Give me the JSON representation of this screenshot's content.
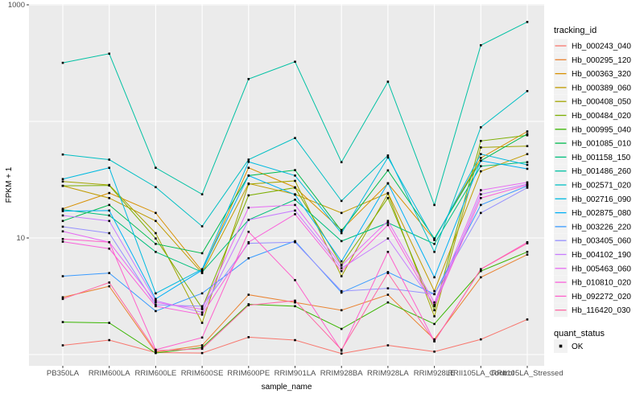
{
  "chart_data": {
    "type": "line",
    "title": "",
    "xlabel": "sample_name",
    "ylabel": "FPKM + 1",
    "y_scale": "log10",
    "ylim": [
      0.8,
      1000
    ],
    "grid": "on",
    "legend_position": "right",
    "y_ticks": [
      {
        "label": "1000",
        "value": 1000
      },
      {
        "label": "10",
        "value": 10
      }
    ],
    "y_gridlines": [
      1,
      10,
      100,
      1000
    ],
    "x_categories": [
      "PB350LA",
      "RRIM600LA",
      "RRIM600LE",
      "RRIM600SE",
      "RRIM600PE",
      "RRIM901LA",
      "RRIM928BA",
      "RRIM928LA",
      "RRIM928LE",
      "RRII105LA_Control",
      "RRII105LA_Stressed"
    ],
    "legend_title": "tracking_id",
    "point_marker": {
      "shape": "square",
      "color": "#000000"
    },
    "quant_legend": {
      "title": "quant_status",
      "entries": [
        "OK"
      ]
    },
    "series": [
      {
        "name": "Hb_000243_040",
        "color": "#F8766D",
        "values": [
          1.2,
          1.33,
          1.04,
          1.03,
          1.41,
          1.33,
          1.02,
          1.2,
          1.06,
          1.35,
          2.0
        ]
      },
      {
        "name": "Hb_000295_120",
        "color": "#EA8331",
        "values": [
          3.1,
          3.85,
          1.05,
          1.2,
          3.26,
          2.8,
          2.4,
          3.26,
          1.35,
          4.6,
          7.2
        ]
      },
      {
        "name": "Hb_000363_320",
        "color": "#D89000",
        "values": [
          17.8,
          24.3,
          16.4,
          5.2,
          40,
          27.2,
          11.7,
          29.3,
          9.7,
          48.6,
          82
        ]
      },
      {
        "name": "Hb_000389_060",
        "color": "#C09B00",
        "values": [
          28,
          22,
          14,
          5.0,
          29.3,
          23.7,
          16.4,
          24.3,
          3.5,
          37.3,
          52.4
        ]
      },
      {
        "name": "Hb_000408_050",
        "color": "#A3A500",
        "values": [
          30.5,
          28.5,
          11,
          1.87,
          29,
          30.9,
          4.7,
          24,
          2.13,
          59.8,
          61.4
        ]
      },
      {
        "name": "Hb_000484_020",
        "color": "#7CAE00",
        "values": [
          28,
          28.2,
          9.9,
          2.5,
          23.2,
          27,
          5.9,
          22,
          2.4,
          68,
          76
        ]
      },
      {
        "name": "Hb_000995_040",
        "color": "#39B600",
        "values": [
          1.9,
          1.87,
          1.03,
          1.15,
          2.7,
          2.6,
          1.66,
          2.8,
          1.83,
          5.2,
          7.6
        ]
      },
      {
        "name": "Hb_001085_010",
        "color": "#00BB4E",
        "values": [
          14,
          19.2,
          8.9,
          7.4,
          34.3,
          38.2,
          11.5,
          38,
          9.9,
          46,
          78
        ]
      },
      {
        "name": "Hb_001158_150",
        "color": "#00BF7D",
        "values": [
          17.5,
          15.6,
          7.6,
          5.1,
          14.3,
          21.3,
          9.4,
          13.5,
          8.9,
          41.3,
          44.7
        ]
      },
      {
        "name": "Hb_001486_260",
        "color": "#00C1A3",
        "values": [
          318,
          381,
          40,
          23.7,
          231,
          325,
          44.7,
          219,
          19.2,
          450,
          713
        ]
      },
      {
        "name": "Hb_002571_020",
        "color": "#00BFC4",
        "values": [
          52,
          47,
          27.3,
          12.6,
          47,
          72,
          20.8,
          51,
          7.6,
          89,
          182
        ]
      },
      {
        "name": "Hb_002716_090",
        "color": "#00BAE0",
        "values": [
          32,
          40,
          3.35,
          5.4,
          45,
          34.3,
          11.0,
          49,
          9.6,
          52.4,
          42.4
        ]
      },
      {
        "name": "Hb_002875_080",
        "color": "#00B0F6",
        "values": [
          17,
          17.2,
          3.0,
          5.3,
          34.3,
          23.5,
          6.3,
          29.5,
          4.6,
          46,
          39.2
        ]
      },
      {
        "name": "Hb_003226_220",
        "color": "#3A9BFF",
        "values": [
          4.7,
          5.0,
          2.36,
          3.35,
          6.7,
          9.4,
          3.4,
          5.1,
          3.3,
          19.2,
          28
        ]
      },
      {
        "name": "Hb_003405_060",
        "color": "#9590FF",
        "values": [
          12.5,
          11,
          2.67,
          2.6,
          9.0,
          9.2,
          3.5,
          3.7,
          3.3,
          16.4,
          27
        ]
      },
      {
        "name": "Hb_004102_190",
        "color": "#C77CFF",
        "values": [
          15.6,
          14,
          2.9,
          2.3,
          14.3,
          17.2,
          5.5,
          9.9,
          2.67,
          23.7,
          29
        ]
      },
      {
        "name": "Hb_005463_060",
        "color": "#E76BF3",
        "values": [
          11.4,
          9.2,
          2.8,
          2.45,
          18.2,
          19.2,
          5.8,
          14,
          2.8,
          25.7,
          30
        ]
      },
      {
        "name": "Hb_010810_020",
        "color": "#FA62DB",
        "values": [
          9.3,
          8.1,
          2.6,
          2.2,
          9.2,
          16,
          5.2,
          12.9,
          2.6,
          22,
          28.5
        ]
      },
      {
        "name": "Hb_092272_020",
        "color": "#FF61CC",
        "values": [
          9.8,
          9.2,
          1.1,
          1.4,
          11.3,
          4.35,
          1.08,
          7.6,
          1.3,
          5.4,
          9.2
        ]
      },
      {
        "name": "Hb_116420_030",
        "color": "#FF67A4",
        "values": [
          3.0,
          4.15,
          1.08,
          1.12,
          2.65,
          2.9,
          1.1,
          5.0,
          1.3,
          5.4,
          9.0
        ]
      }
    ]
  },
  "colors": {
    "background": "#FFFFFF",
    "panel_bg": "#EBEBEB",
    "gridline": "#FFFFFF",
    "axis_text": "#4D4D4D",
    "title_text": "#000000",
    "tick_mark": "#333333",
    "legend_key_bg": "#F2F2F2",
    "point": "#000000"
  }
}
